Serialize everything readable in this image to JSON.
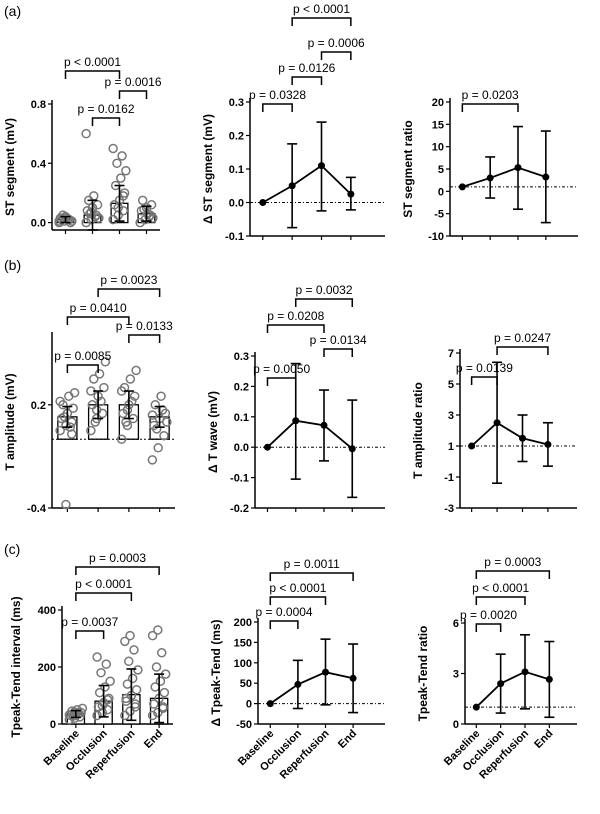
{
  "panel_labels": [
    "(a)",
    "(b)",
    "(c)"
  ],
  "categories": [
    "Baseline",
    "Occlusion",
    "Reperfusion",
    "End"
  ],
  "colors": {
    "axis": "#000000",
    "bar_fill": "#ffffff",
    "dot_stroke": "#777777",
    "mean_dot": "#000000"
  },
  "chart_data": [
    {
      "id": "a1",
      "type": "bar",
      "title": "",
      "ylabel": "ST segment (mV)",
      "ylim": [
        -0.05,
        0.8
      ],
      "yticks": [
        0.0,
        0.4,
        0.8
      ],
      "ytick_labels": [
        "0.0",
        "0.4",
        "0.8"
      ],
      "categories": [
        "Baseline",
        "Occlusion",
        "Reperfusion",
        "End"
      ],
      "values": [
        0.02,
        0.05,
        0.13,
        0.06
      ],
      "error": [
        0.02,
        0.1,
        0.12,
        0.05
      ],
      "points": [
        [
          0.0,
          0.01,
          0.02,
          0.03,
          0.04,
          0.0,
          0.02,
          0.03,
          0.01,
          0.05,
          0.02,
          0.01,
          0.03
        ],
        [
          0.0,
          0.02,
          0.05,
          0.08,
          0.1,
          0.12,
          0.15,
          0.18,
          0.03,
          0.06,
          0.04,
          0.6,
          0.07
        ],
        [
          0.02,
          0.05,
          0.08,
          0.12,
          0.15,
          0.2,
          0.25,
          0.3,
          0.35,
          0.4,
          0.45,
          0.5,
          0.1,
          0.18
        ],
        [
          0.0,
          0.02,
          0.05,
          0.08,
          0.1,
          0.12,
          0.15,
          0.06,
          0.03,
          0.09,
          0.04
        ]
      ],
      "brackets": [
        {
          "from": 1,
          "to": 2,
          "label": "p = 0.0162"
        },
        {
          "from": 2,
          "to": 3,
          "label": "p = 0.0016"
        },
        {
          "from": 0,
          "to": 2,
          "label": "p < 0.0001"
        }
      ]
    },
    {
      "id": "a2",
      "type": "line",
      "ylabel": "Δ ST segment (mV)",
      "ylim": [
        -0.1,
        0.3
      ],
      "yticks": [
        -0.1,
        0.0,
        0.1,
        0.2,
        0.3
      ],
      "ytick_labels": [
        "-0.1",
        "0.0",
        "0.1",
        "0.2",
        "0.3"
      ],
      "categories": [
        "Baseline",
        "Occlusion",
        "Reperfusion",
        "End"
      ],
      "values": [
        0.0,
        0.05,
        0.11,
        0.025
      ],
      "err_low": [
        0.0,
        -0.075,
        -0.025,
        -0.022
      ],
      "err_high": [
        0.0,
        0.175,
        0.24,
        0.075
      ],
      "reference": 0,
      "brackets": [
        {
          "from": 0,
          "to": 1,
          "label": "p = 0.0328"
        },
        {
          "from": 1,
          "to": 2,
          "label": "p = 0.0126"
        },
        {
          "from": 2,
          "to": 3,
          "label": "p = 0.0006"
        },
        {
          "from": 1,
          "to": 3,
          "label": "p < 0.0001"
        }
      ]
    },
    {
      "id": "a3",
      "type": "line",
      "ylabel": "ST segment ratio",
      "ylim": [
        -10,
        20
      ],
      "yticks": [
        -10,
        -5,
        0,
        5,
        10,
        15,
        20
      ],
      "ytick_labels": [
        "-10",
        "-5",
        "0",
        "5",
        "10",
        "15",
        "20"
      ],
      "categories": [
        "Baseline",
        "Occlusion",
        "Reperfusion",
        "End"
      ],
      "values": [
        1.0,
        3.0,
        5.3,
        3.2
      ],
      "err_low": [
        1.0,
        -1.5,
        -4.0,
        -7.0
      ],
      "err_high": [
        1.0,
        7.7,
        14.5,
        13.5
      ],
      "reference": 1,
      "brackets": [
        {
          "from": 0,
          "to": 2,
          "label": "p = 0.0203"
        }
      ]
    },
    {
      "id": "b1",
      "type": "bar",
      "ylabel": "T amplitude (mV)",
      "ylim": [
        -0.4,
        0.6
      ],
      "yticks": [
        -0.4,
        0.2
      ],
      "ytick_labels": [
        "-0.4",
        "0.2"
      ],
      "categories": [
        "Baseline",
        "Occlusion",
        "Reperfusion",
        "End"
      ],
      "values": [
        0.13,
        0.2,
        0.2,
        0.13
      ],
      "error": [
        0.06,
        0.08,
        0.08,
        0.06
      ],
      "reference": 0,
      "points": [
        [
          0.05,
          0.08,
          0.1,
          0.12,
          0.15,
          0.18,
          0.2,
          0.25,
          0.27,
          0.13,
          0.07,
          0.22,
          -0.38,
          0.03
        ],
        [
          0.05,
          0.12,
          0.15,
          0.2,
          0.25,
          0.3,
          0.35,
          0.38,
          0.45,
          0.1,
          0.22,
          0.28,
          0.17
        ],
        [
          0.0,
          0.08,
          0.12,
          0.15,
          0.2,
          0.25,
          0.3,
          0.35,
          0.4,
          0.1,
          0.22,
          0.28,
          0.17
        ],
        [
          -0.12,
          -0.05,
          0.02,
          0.08,
          0.12,
          0.15,
          0.2,
          0.25,
          0.1,
          0.06,
          0.17,
          0.14
        ]
      ],
      "brackets": [
        {
          "from": 0,
          "to": 1,
          "label": "p = 0.0085"
        },
        {
          "from": 2,
          "to": 3,
          "label": "p = 0.0133"
        },
        {
          "from": 0,
          "to": 2,
          "label": "p = 0.0410"
        },
        {
          "from": 1,
          "to": 3,
          "label": "p = 0.0023"
        }
      ]
    },
    {
      "id": "b2",
      "type": "line",
      "ylabel": "Δ T wave (mV)",
      "ylim": [
        -0.2,
        0.3
      ],
      "yticks": [
        -0.2,
        -0.1,
        0.0,
        0.1,
        0.2,
        0.3
      ],
      "ytick_labels": [
        "-0.2",
        "-0.1",
        "0.0",
        "0.1",
        "0.2",
        "0.3"
      ],
      "categories": [
        "Baseline",
        "Occlusion",
        "Reperfusion",
        "End"
      ],
      "values": [
        0.0,
        0.087,
        0.072,
        -0.005
      ],
      "err_low": [
        0.0,
        -0.105,
        -0.045,
        -0.165
      ],
      "err_high": [
        0.0,
        0.275,
        0.188,
        0.155
      ],
      "reference": 0,
      "brackets": [
        {
          "from": 0,
          "to": 1,
          "label": "p = 0.0050"
        },
        {
          "from": 2,
          "to": 3,
          "label": "p = 0.0134"
        },
        {
          "from": 0,
          "to": 2,
          "label": "p = 0.0208"
        },
        {
          "from": 1,
          "to": 3,
          "label": "p = 0.0032"
        }
      ]
    },
    {
      "id": "b3",
      "type": "line",
      "ylabel": "T amplitude ratio",
      "ylim": [
        -3,
        7
      ],
      "yticks": [
        -3,
        -1,
        1,
        3,
        5,
        7
      ],
      "ytick_labels": [
        "-3",
        "-1",
        "1",
        "3",
        "5",
        "7"
      ],
      "categories": [
        "Baseline",
        "Occlusion",
        "Reperfusion",
        "End"
      ],
      "values": [
        1.0,
        2.5,
        1.5,
        1.1
      ],
      "err_low": [
        1.0,
        -1.4,
        0.0,
        -0.3
      ],
      "err_high": [
        1.0,
        6.4,
        3.0,
        2.5
      ],
      "reference": 1,
      "brackets": [
        {
          "from": 0,
          "to": 1,
          "label": "p = 0.0139"
        },
        {
          "from": 1,
          "to": 3,
          "label": "p = 0.0247"
        }
      ]
    },
    {
      "id": "c1",
      "type": "bar",
      "ylabel": "Tpeak-Tend interval (ms)",
      "ylim": [
        0,
        400
      ],
      "yticks": [
        0,
        200,
        400
      ],
      "ytick_labels": [
        "0",
        "200",
        "400"
      ],
      "categories": [
        "Baseline",
        "Occlusion",
        "Reperfusion",
        "End"
      ],
      "values": [
        35,
        80,
        103,
        90
      ],
      "error": [
        12,
        55,
        90,
        85
      ],
      "points": [
        [
          15,
          20,
          25,
          30,
          35,
          40,
          45,
          50,
          55,
          28,
          38,
          32,
          42
        ],
        [
          30,
          40,
          50,
          60,
          75,
          90,
          110,
          130,
          150,
          180,
          210,
          235,
          65,
          85
        ],
        [
          30,
          45,
          60,
          80,
          100,
          120,
          140,
          160,
          190,
          220,
          260,
          290,
          310,
          70,
          90
        ],
        [
          30,
          40,
          55,
          70,
          90,
          110,
          130,
          150,
          175,
          200,
          250,
          310,
          330,
          60
        ]
      ],
      "brackets": [
        {
          "from": 0,
          "to": 1,
          "label": "p = 0.0037"
        },
        {
          "from": 0,
          "to": 2,
          "label": "p < 0.0001"
        },
        {
          "from": 0,
          "to": 3,
          "label": "p = 0.0003"
        }
      ]
    },
    {
      "id": "c2",
      "type": "line",
      "ylabel": "Δ Tpeak-Tend (ms)",
      "ylim": [
        -50,
        200
      ],
      "yticks": [
        -50,
        0,
        50,
        100,
        150,
        200
      ],
      "ytick_labels": [
        "-50",
        "0",
        "50",
        "100",
        "150",
        "200"
      ],
      "categories": [
        "Baseline",
        "Occlusion",
        "Reperfusion",
        "End"
      ],
      "values": [
        0,
        47,
        77,
        62
      ],
      "err_low": [
        0,
        -12,
        -3,
        -22
      ],
      "err_high": [
        0,
        106,
        158,
        146
      ],
      "reference": 0,
      "brackets": [
        {
          "from": 0,
          "to": 1,
          "label": "p = 0.0004"
        },
        {
          "from": 0,
          "to": 2,
          "label": "p < 0.0001"
        },
        {
          "from": 0,
          "to": 3,
          "label": "p = 0.0011"
        }
      ]
    },
    {
      "id": "c3",
      "type": "line",
      "ylabel": "Tpeak-Tend ratio",
      "ylim": [
        0,
        6
      ],
      "yticks": [
        0,
        3,
        6
      ],
      "ytick_labels": [
        "0",
        "3",
        "6"
      ],
      "categories": [
        "Baseline",
        "Occlusion",
        "Reperfusion",
        "End"
      ],
      "values": [
        1.0,
        2.4,
        3.1,
        2.65
      ],
      "err_low": [
        1.0,
        0.65,
        0.9,
        0.4
      ],
      "err_high": [
        1.0,
        4.15,
        5.3,
        4.9
      ],
      "reference": 1,
      "brackets": [
        {
          "from": 0,
          "to": 1,
          "label": "p = 0.0020"
        },
        {
          "from": 0,
          "to": 2,
          "label": "p < 0.0001"
        },
        {
          "from": 0,
          "to": 3,
          "label": "p = 0.0003"
        }
      ]
    }
  ]
}
